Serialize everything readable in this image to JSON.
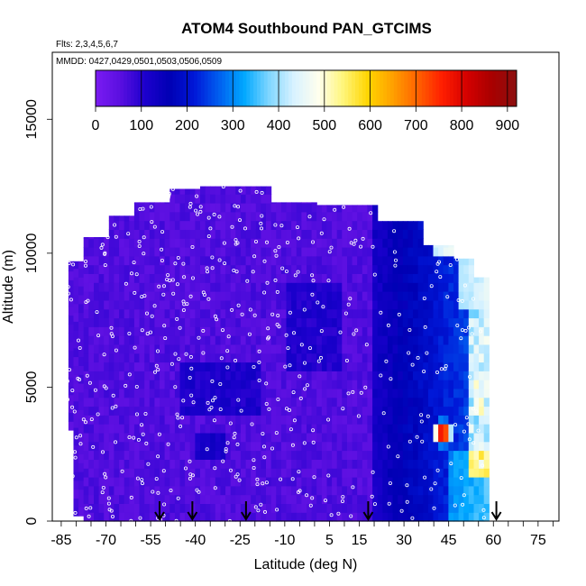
{
  "chart_data": {
    "type": "heatmap",
    "title": "ATOM4 Southbound PAN_GTCIMS",
    "subtitle_flights": "Flts: 2,3,4,5,6,7",
    "subtitle_dates": "MMDD: 0427,0429,0501,0503,0506,0509",
    "xlabel": "Latitude (deg N)",
    "ylabel": "Altitude (m)",
    "xlim": [
      -88,
      82
    ],
    "ylim": [
      0,
      17500
    ],
    "x_ticks": [
      -85,
      -70,
      -55,
      -40,
      -25,
      -10,
      5,
      15,
      30,
      45,
      60,
      75
    ],
    "x_minor_step": 5,
    "y_ticks": [
      0,
      5000,
      10000,
      15000
    ],
    "colorbar": {
      "range": [
        0,
        920
      ],
      "ticks": [
        0,
        100,
        200,
        300,
        400,
        500,
        600,
        700,
        800,
        900
      ],
      "colors": [
        "#7b1cf2",
        "#5a0fe0",
        "#1c00cd",
        "#0000b4",
        "#0018d8",
        "#0060f0",
        "#00a8ff",
        "#7fd6ff",
        "#d8f2ff",
        "#ffffee",
        "#fff57a",
        "#ffd500",
        "#ffa000",
        "#ff6200",
        "#ff1e00",
        "#d40000",
        "#a80000",
        "#8c1010"
      ]
    },
    "profile_latitudes": [
      -52,
      -41,
      -23,
      18,
      61
    ],
    "hotspot": {
      "lat": 43,
      "alt": 3300,
      "value": 900
    }
  }
}
